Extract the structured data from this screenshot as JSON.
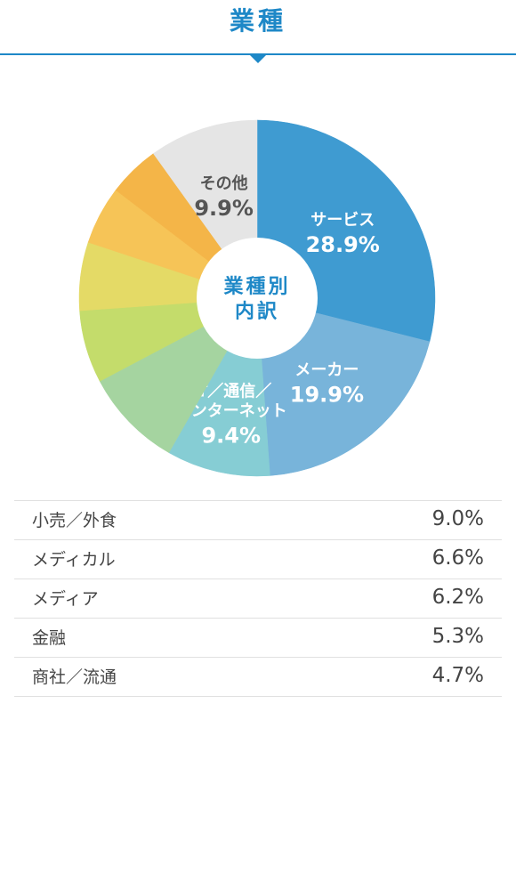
{
  "header": {
    "title": "業種"
  },
  "chart_data": {
    "type": "pie",
    "center_label": [
      "業種別",
      "内訳"
    ],
    "slices": [
      {
        "label": "サービス",
        "value": 28.9,
        "color": "#3f9bd1",
        "text_color": "#ffffff"
      },
      {
        "label": "メーカー",
        "value": 19.9,
        "color": "#78b4da",
        "text_color": "#ffffff"
      },
      {
        "label": "IT／通信／インターネット",
        "label_lines": [
          "IT／通信／",
          "インターネット"
        ],
        "value": 9.4,
        "color": "#86cdd4",
        "text_color": "#ffffff"
      },
      {
        "label": "小売／外食",
        "value": 9.0,
        "color": "#a5d4a0",
        "text_color": ""
      },
      {
        "label": "メディカル",
        "value": 6.6,
        "color": "#c4dc6b",
        "text_color": ""
      },
      {
        "label": "メディア",
        "value": 6.2,
        "color": "#e4da66",
        "text_color": ""
      },
      {
        "label": "金融",
        "value": 5.3,
        "color": "#f6c457",
        "text_color": ""
      },
      {
        "label": "商社／流通",
        "value": 4.7,
        "color": "#f4b548",
        "text_color": ""
      },
      {
        "label": "その他",
        "value": 9.9,
        "color": "#e5e5e5",
        "text_color": "#555555"
      }
    ]
  },
  "list": [
    {
      "label": "小売／外食",
      "value": "9.0%"
    },
    {
      "label": "メディカル",
      "value": "6.6%"
    },
    {
      "label": "メディア",
      "value": "6.2%"
    },
    {
      "label": "金融",
      "value": "5.3%"
    },
    {
      "label": "商社／流通",
      "value": "4.7%"
    }
  ]
}
